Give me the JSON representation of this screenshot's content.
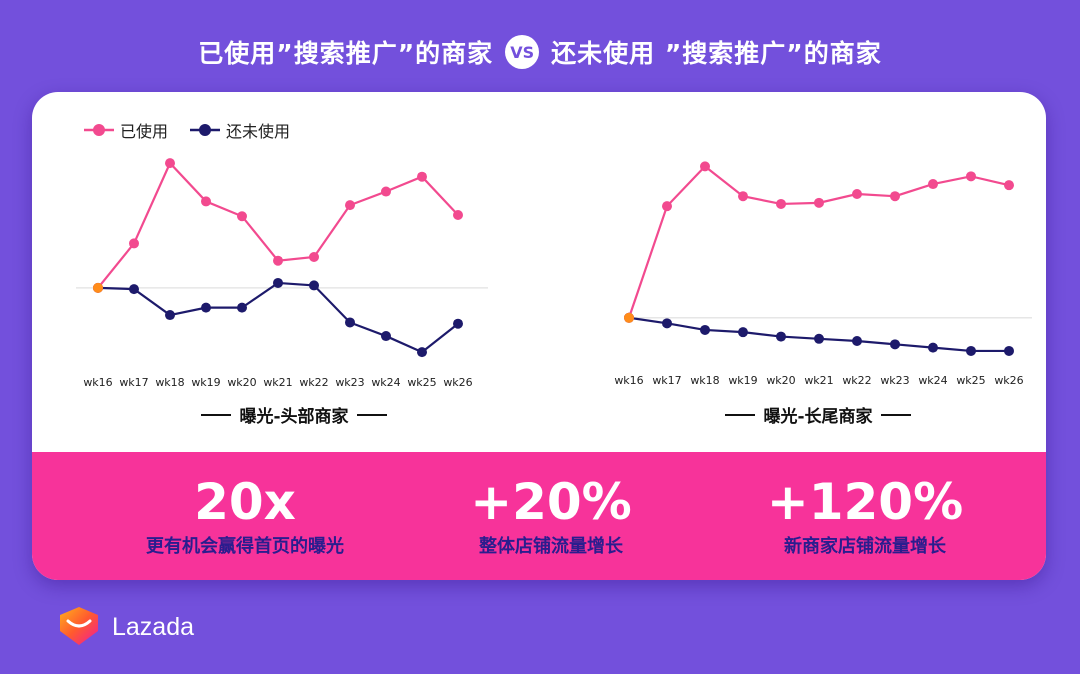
{
  "header": {
    "left_text": "已使用”搜索推广”的商家",
    "vs_label": "VS",
    "right_text": "还未使用 ”搜索推广”的商家"
  },
  "colors": {
    "background": "#7350dc",
    "used": "#f24a8f",
    "unused": "#1d1a6b",
    "band": "#f7339a",
    "stat_label": "#2a1d8e"
  },
  "legend": {
    "used_label": "已使用",
    "unused_label": "还未使用"
  },
  "chart_data": [
    {
      "type": "line",
      "title": "曝光-头部商家",
      "categories": [
        "wk16",
        "wk17",
        "wk18",
        "wk19",
        "wk20",
        "wk21",
        "wk22",
        "wk23",
        "wk24",
        "wk25",
        "wk26"
      ],
      "grid": false,
      "baseline": 0,
      "ylim": [
        -60,
        110
      ],
      "series": [
        {
          "name": "已使用",
          "values": [
            0,
            36,
            101,
            70,
            58,
            22,
            25,
            67,
            78,
            90,
            59
          ]
        },
        {
          "name": "还未使用",
          "values": [
            0,
            -1,
            -22,
            -16,
            -16,
            4,
            2,
            -28,
            -39,
            -52,
            -29
          ]
        }
      ]
    },
    {
      "type": "line",
      "title": "曝光-长尾商家",
      "categories": [
        "wk16",
        "wk17",
        "wk18",
        "wk19",
        "wk20",
        "wk21",
        "wk22",
        "wk23",
        "wk24",
        "wk25",
        "wk26"
      ],
      "grid": false,
      "baseline": 0,
      "ylim": [
        -40,
        150
      ],
      "series": [
        {
          "name": "已使用",
          "values": [
            0,
            101,
            137,
            110,
            103,
            104,
            112,
            110,
            121,
            128,
            120
          ]
        },
        {
          "name": "还未使用",
          "values": [
            0,
            -5,
            -11,
            -13,
            -17,
            -19,
            -21,
            -24,
            -27,
            -30,
            -30
          ]
        }
      ]
    }
  ],
  "stats": [
    {
      "value": "20x",
      "label": "更有机会赢得首页的曝光"
    },
    {
      "value": "+20%",
      "label": "整体店铺流量增长"
    },
    {
      "value": "+120%",
      "label": "新商家店铺流量增长"
    }
  ],
  "brand": {
    "name": "Lazada"
  }
}
